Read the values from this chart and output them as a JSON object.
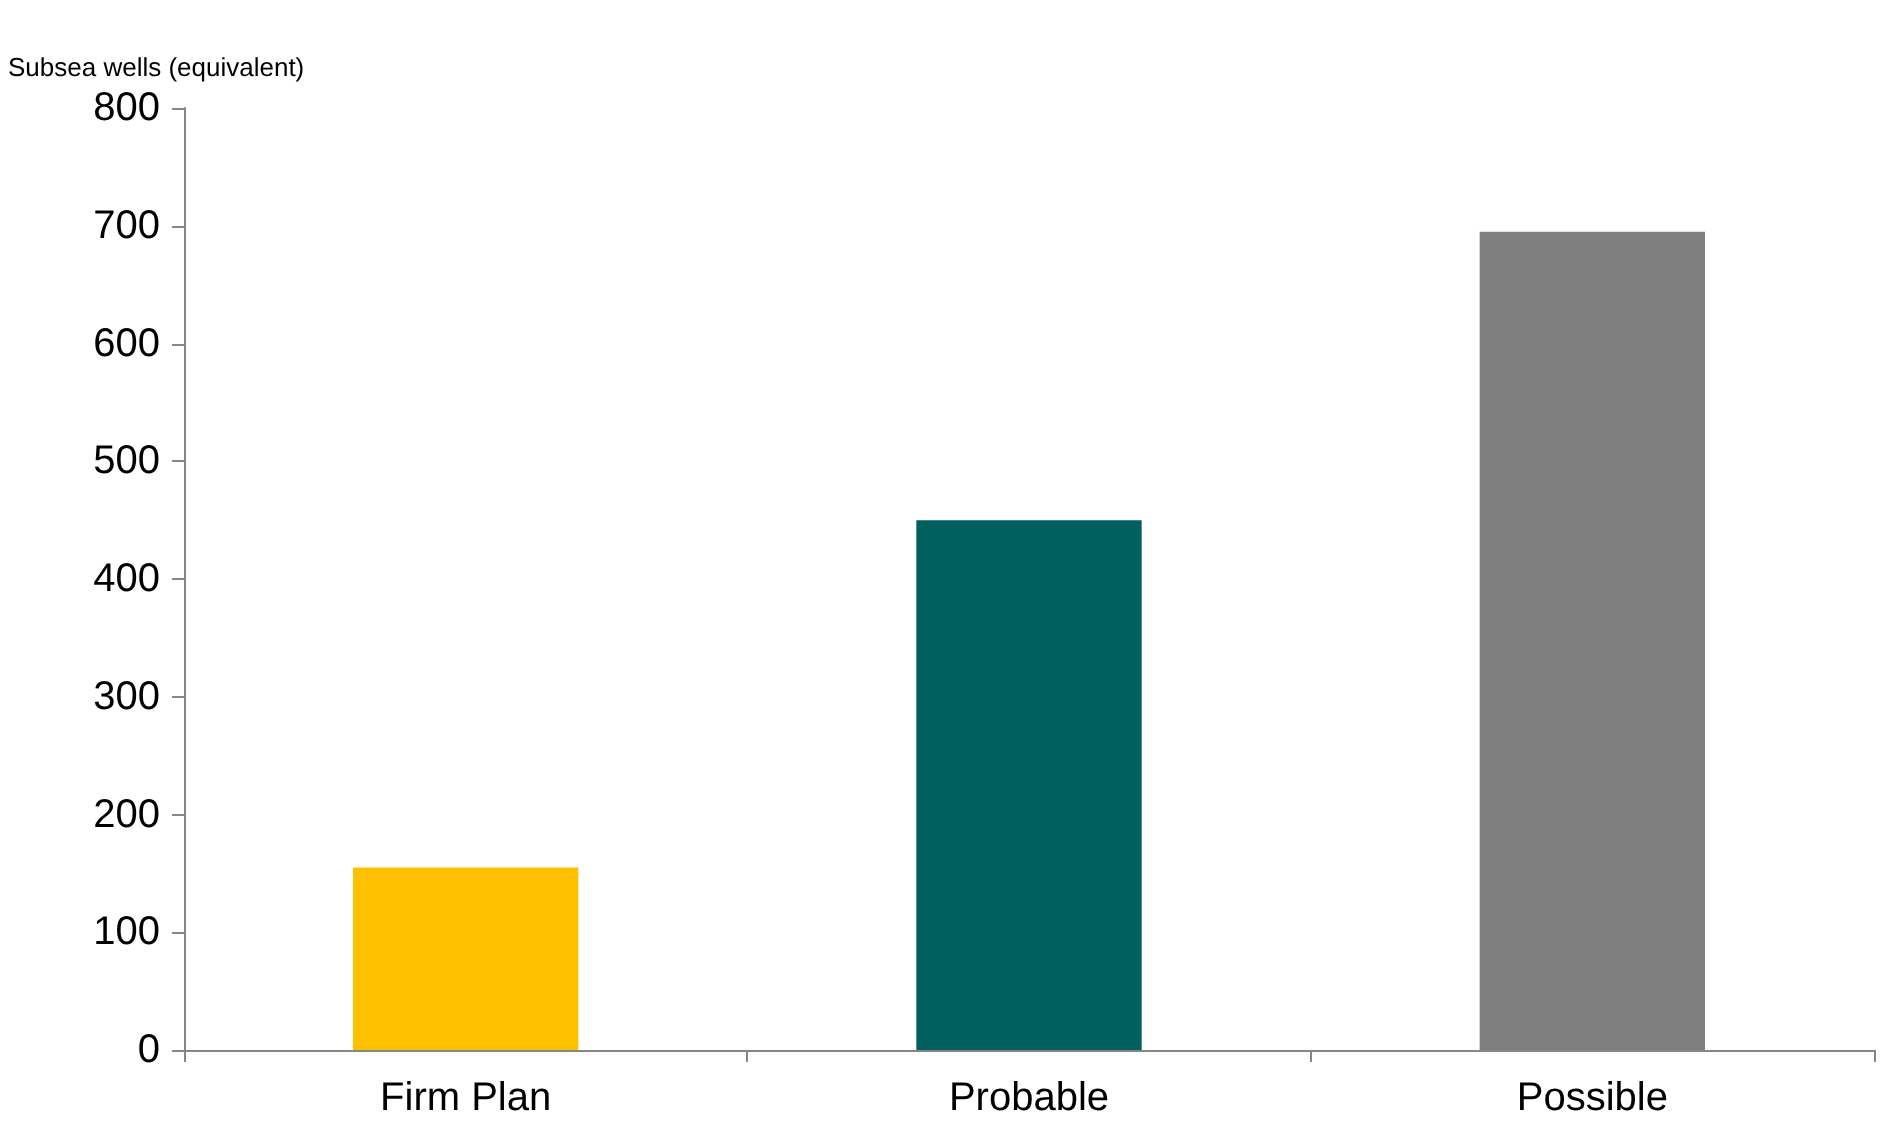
{
  "chart_data": {
    "type": "bar",
    "ylabel": "Subsea wells (equivalent)",
    "categories": [
      "Firm Plan",
      "Probable",
      "Possible"
    ],
    "values": [
      155,
      450,
      695
    ],
    "colors": [
      "#ffc000",
      "#006060",
      "#7f7f7f"
    ],
    "ylim": [
      0,
      800
    ],
    "yticks": [
      0,
      100,
      200,
      300,
      400,
      500,
      600,
      700,
      800
    ],
    "grid": false
  }
}
